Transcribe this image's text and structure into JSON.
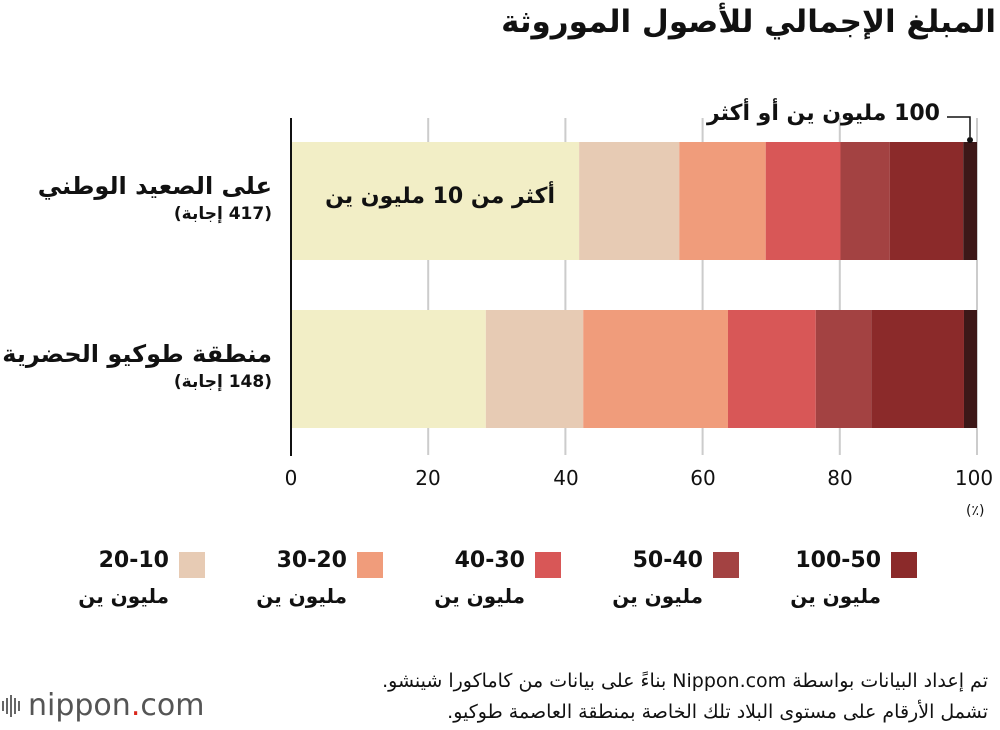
{
  "title": "المبلغ الإجمالي للأصول الموروثة",
  "inbar_label": "أكثر من 10 مليون ين",
  "callout_label": "100 مليون ين أو أكثر",
  "unit_label": "(٪)",
  "source_lines": [
    "تم إعداد البيانات بواسطة Nippon.com بناءً على بيانات من كاماكورا شينشو.",
    "تشمل الأرقام على مستوى البلاد تلك الخاصة بمنطقة العاصمة طوكيو."
  ],
  "logo": {
    "brand": "nippon",
    "dot": ".",
    "suffix": "com"
  },
  "legend": [
    {
      "range": "20-10",
      "unit": "مليون ين",
      "color": "#e7cbb4"
    },
    {
      "range": "30-20",
      "unit": "مليون ين",
      "color": "#f09c7b"
    },
    {
      "range": "40-30",
      "unit": "مليون ين",
      "color": "#d85757"
    },
    {
      "range": "50-40",
      "unit": "مليون ين",
      "color": "#a34242"
    },
    {
      "range": "100-50",
      "unit": "مليون ين",
      "color": "#8b2a2a"
    }
  ],
  "chart_data": {
    "type": "bar",
    "orientation": "horizontal",
    "stacked": true,
    "title": "المبلغ الإجمالي للأصول الموروثة",
    "categories": [
      "على الصعيد الوطني",
      "منطقة طوكيو الحضرية"
    ],
    "category_counts": [
      "(417 إجابة)",
      "(148 إجابة)"
    ],
    "xlim": [
      0,
      100
    ],
    "xticks": [
      "0",
      "20",
      "40",
      "60",
      "80",
      "100"
    ],
    "xlabel": "(٪)",
    "grid": true,
    "series": [
      {
        "name": "",
        "color": "#f2eec6",
        "values": [
          42,
          28.4
        ]
      },
      {
        "name": "20-10 مليون ين",
        "color": "#e7cbb4",
        "values": [
          14.6,
          14.2
        ]
      },
      {
        "name": "30-20 مليون ين",
        "color": "#f09c7b",
        "values": [
          12.6,
          21.1
        ]
      },
      {
        "name": "40-30 مليون ين",
        "color": "#d85757",
        "values": [
          10.9,
          12.8
        ]
      },
      {
        "name": "50-40 مليون ين",
        "color": "#a34242",
        "values": [
          7.2,
          8.1
        ]
      },
      {
        "name": "100-50 مليون ين",
        "color": "#8b2a2a",
        "values": [
          10.7,
          13.5
        ]
      },
      {
        "name": "100 مليون ين أو أكثر",
        "color": "#3d1818",
        "values": [
          2.0,
          1.9
        ]
      }
    ]
  }
}
